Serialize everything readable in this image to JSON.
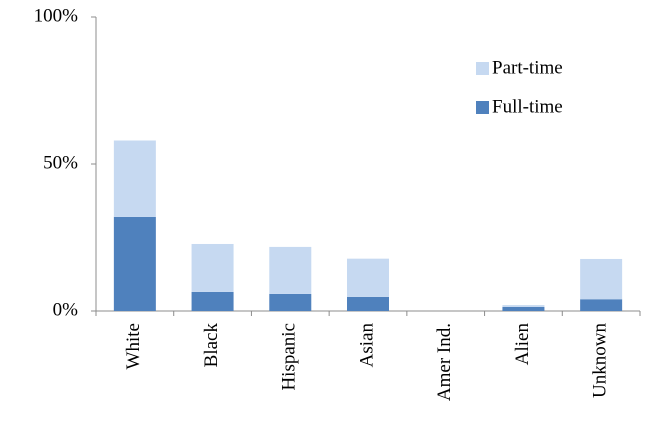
{
  "chart_data": {
    "type": "stacked_bar",
    "categories": [
      "White",
      "Black",
      "Hispanic",
      "Asian",
      "Amer Ind.",
      "Alien",
      "Unknown"
    ],
    "series": [
      {
        "name": "Full-time",
        "color": "#4f81bd",
        "values": [
          32,
          6.5,
          5.8,
          4.8,
          0,
          1.4,
          4
        ]
      },
      {
        "name": "Part-time",
        "color": "#c6d9f1",
        "values": [
          26,
          16.3,
          16,
          13,
          0,
          0.6,
          13.7
        ]
      }
    ],
    "ylim": [
      0,
      100
    ],
    "yticks": [
      {
        "value": 0,
        "label": "0%"
      },
      {
        "value": 50,
        "label": "50%"
      },
      {
        "value": 100,
        "label": "100%"
      }
    ],
    "legend": "upper right"
  }
}
